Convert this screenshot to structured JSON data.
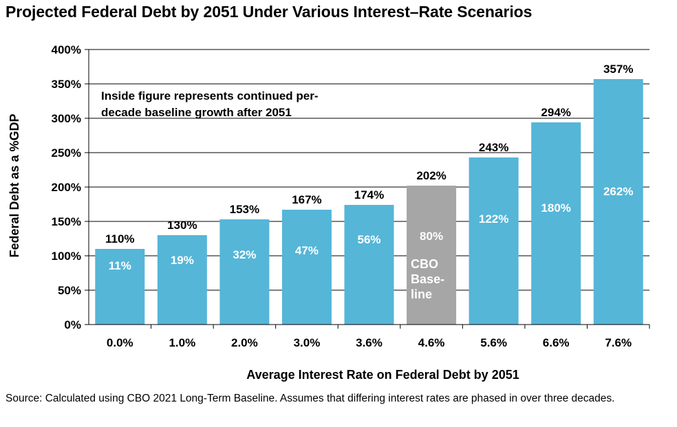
{
  "title": "Projected Federal Debt by 2051 Under Various Interest–Rate Scenarios",
  "source_note": "Source: Calculated using CBO 2021 Long-Term Baseline. Assumes that differing interest rates are phased in over three decades.",
  "colors": {
    "bar": "#55b6d8",
    "baseline_bar": "#a6a6a6",
    "inside_text": "#ffffff",
    "outer_text": "#000000"
  },
  "chart_data": {
    "type": "bar",
    "xlabel": "Average Interest Rate on Federal Debt by 2051",
    "ylabel": "Federal Debt as a %GDP",
    "ylim": [
      0,
      400
    ],
    "yticks": [
      "0%",
      "50%",
      "100%",
      "150%",
      "200%",
      "250%",
      "300%",
      "350%",
      "400%"
    ],
    "grid": true,
    "annotation": [
      "Inside figure represents continued per-",
      "decade baseline growth after 2051"
    ],
    "categories": [
      "0.0%",
      "1.0%",
      "2.0%",
      "3.0%",
      "3.6%",
      "4.6%",
      "5.6%",
      "6.6%",
      "7.6%"
    ],
    "values": [
      110,
      130,
      153,
      167,
      174,
      202,
      243,
      294,
      357
    ],
    "value_labels": [
      "110%",
      "130%",
      "153%",
      "167%",
      "174%",
      "202%",
      "243%",
      "294%",
      "357%"
    ],
    "inside_labels": [
      "11%",
      "19%",
      "32%",
      "47%",
      "56%",
      "80%",
      "122%",
      "180%",
      "262%"
    ],
    "highlight_index": 5,
    "highlight_label": [
      "CBO",
      "Base-",
      "line"
    ]
  }
}
